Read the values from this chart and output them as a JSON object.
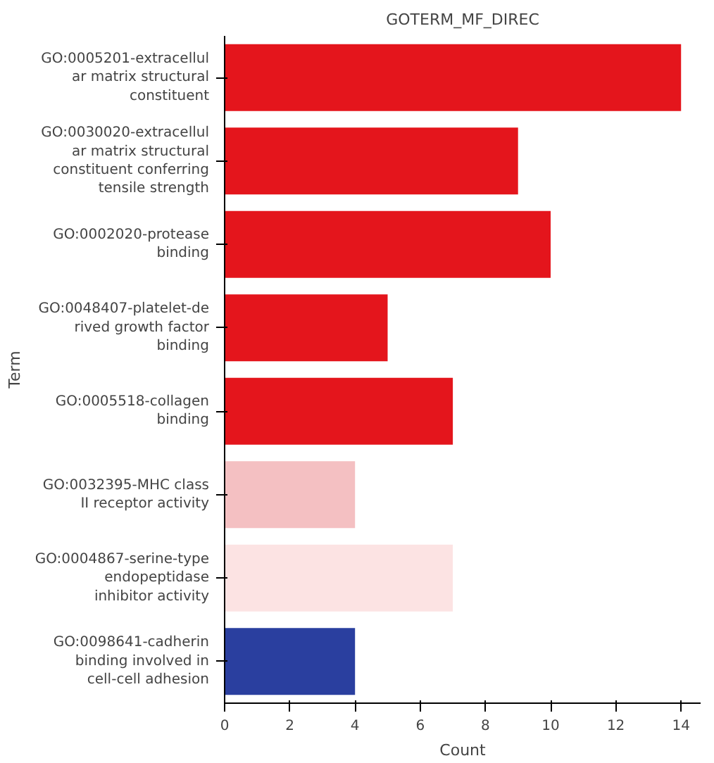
{
  "chart_data": {
    "type": "bar",
    "orientation": "horizontal",
    "title": "GOTERM_MF_DIREC",
    "xlabel": "Count",
    "ylabel": "Term",
    "categories": [
      "GO:0005201-extracellular matrix structural constituent",
      "GO:0030020-extracellular matrix structural constituent conferring tensile strength",
      "GO:0002020-protease binding",
      "GO:0048407-platelet-derived growth factor binding",
      "GO:0005518-collagen binding",
      "GO:0032395-MHC class II receptor activity",
      "GO:0004867-serine-type endopeptidase inhibitor activity",
      "GO:0098641-cadherin binding involved in cell-cell adhesion"
    ],
    "values": [
      14,
      9,
      10,
      5,
      7,
      4,
      7,
      4
    ],
    "colors": [
      "#e4151c",
      "#e4151c",
      "#e4151c",
      "#e4151c",
      "#e4151c",
      "#f4c0c2",
      "#fce3e3",
      "#2a3f9f"
    ],
    "xlim": [
      0,
      14.6
    ],
    "xticks": [
      0,
      2,
      4,
      6,
      8,
      10,
      12,
      14
    ],
    "grid": false
  }
}
